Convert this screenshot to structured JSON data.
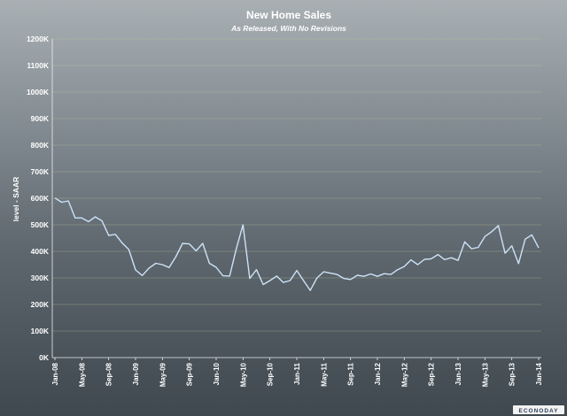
{
  "chart_data": {
    "type": "line",
    "title": "New Home Sales",
    "subtitle": "As Released, With No Revisions",
    "ylabel": "level - SAAR",
    "xlabel": "",
    "ylim": [
      0,
      1200
    ],
    "y_unit": "K",
    "yticks": [
      "0K",
      "100K",
      "200K",
      "300K",
      "400K",
      "500K",
      "600K",
      "700K",
      "800K",
      "900K",
      "1000K",
      "1100K",
      "1200K"
    ],
    "x_tick_labels": [
      "Jan-08",
      "May-08",
      "Sep-08",
      "Jan-09",
      "May-09",
      "Sep-09",
      "Jan-10",
      "May-10",
      "Sep-10",
      "Jan-11",
      "May-11",
      "Sep-11",
      "Jan-12",
      "May-12",
      "Sep-12",
      "Jan-13",
      "May-13",
      "Sep-13",
      "Jan-14"
    ],
    "grid": true,
    "legend": "none",
    "series": [
      {
        "color": "#cde2f7",
        "x": [
          "Jan-08",
          "Feb-08",
          "Mar-08",
          "Apr-08",
          "May-08",
          "Jun-08",
          "Jul-08",
          "Aug-08",
          "Sep-08",
          "Oct-08",
          "Nov-08",
          "Dec-08",
          "Jan-09",
          "Feb-09",
          "Mar-09",
          "Apr-09",
          "May-09",
          "Jun-09",
          "Jul-09",
          "Aug-09",
          "Sep-09",
          "Oct-09",
          "Nov-09",
          "Dec-09",
          "Jan-10",
          "Feb-10",
          "Mar-10",
          "Apr-10",
          "May-10",
          "Jun-10",
          "Jul-10",
          "Aug-10",
          "Sep-10",
          "Oct-10",
          "Nov-10",
          "Dec-10",
          "Jan-11",
          "Feb-11",
          "Mar-11",
          "Apr-11",
          "May-11",
          "Jun-11",
          "Jul-11",
          "Aug-11",
          "Sep-11",
          "Oct-11",
          "Nov-11",
          "Dec-11",
          "Jan-12",
          "Feb-12",
          "Mar-12",
          "Apr-12",
          "May-12",
          "Jun-12",
          "Jul-12",
          "Aug-12",
          "Sep-12",
          "Oct-12",
          "Nov-12",
          "Dec-12",
          "Jan-13",
          "Feb-13",
          "Mar-13",
          "Apr-13",
          "May-13",
          "Jun-13",
          "Jul-13",
          "Aug-13",
          "Sep-13",
          "Oct-13",
          "Nov-13",
          "Dec-13",
          "Jan-14"
        ],
        "values": [
          601,
          585,
          590,
          526,
          526,
          512,
          530,
          515,
          460,
          464,
          432,
          407,
          330,
          309,
          337,
          355,
          350,
          339,
          380,
          430,
          428,
          402,
          430,
          355,
          340,
          308,
          307,
          411,
          500,
          298,
          331,
          275,
          290,
          307,
          283,
          290,
          328,
          290,
          253,
          300,
          323,
          318,
          313,
          298,
          294,
          310,
          306,
          315,
          306,
          316,
          313,
          331,
          343,
          368,
          350,
          370,
          372,
          388,
          369,
          376,
          366,
          436,
          410,
          415,
          456,
          474,
          497,
          393,
          421,
          354,
          446,
          462,
          413
        ]
      }
    ]
  },
  "branding": {
    "logo_text": "ECONODAY"
  }
}
